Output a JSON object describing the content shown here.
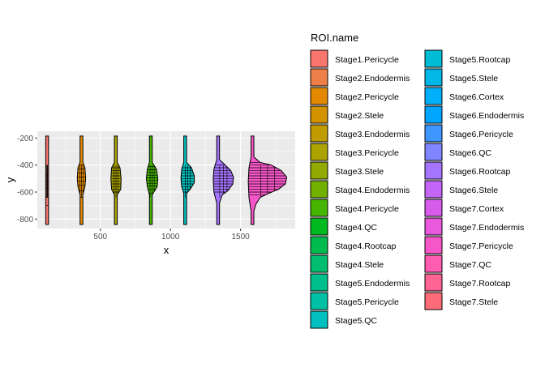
{
  "chart_data": {
    "type": "polygon-map",
    "title": "",
    "xlabel": "x",
    "ylabel": "y",
    "xlim": [
      50,
      1890
    ],
    "ylim": [
      -870,
      -150
    ],
    "x_ticks": [
      500,
      1000,
      1500
    ],
    "y_ticks": [
      -200,
      -400,
      -600,
      -800
    ],
    "grid": true,
    "legend_title": "ROI.name",
    "legend_position": "right",
    "outline_color": "#000000",
    "panel_background": "#ebebeb",
    "categories": [
      {
        "name": "Stage1.Pericycle",
        "color": "#F8766D"
      },
      {
        "name": "Stage2.Endodermis",
        "color": "#EF7F49"
      },
      {
        "name": "Stage2.Pericycle",
        "color": "#E38900"
      },
      {
        "name": "Stage2.Stele",
        "color": "#D39200"
      },
      {
        "name": "Stage3.Endodermis",
        "color": "#C09B00"
      },
      {
        "name": "Stage3.Pericycle",
        "color": "#AAA300"
      },
      {
        "name": "Stage3.Stele",
        "color": "#91AA00"
      },
      {
        "name": "Stage4.Endodermis",
        "color": "#72B000"
      },
      {
        "name": "Stage4.Pericycle",
        "color": "#45B500"
      },
      {
        "name": "Stage4.QC",
        "color": "#00B81F"
      },
      {
        "name": "Stage4.Rootcap",
        "color": "#00BB4E"
      },
      {
        "name": "Stage4.Stele",
        "color": "#00BD6F"
      },
      {
        "name": "Stage5.Endodermis",
        "color": "#00BF8C"
      },
      {
        "name": "Stage5.Pericycle",
        "color": "#00C0A6"
      },
      {
        "name": "Stage5.QC",
        "color": "#00BFBE"
      },
      {
        "name": "Stage5.Rootcap",
        "color": "#00BCD4"
      },
      {
        "name": "Stage5.Stele",
        "color": "#00B7E8"
      },
      {
        "name": "Stage6.Cortex",
        "color": "#00AFF9"
      },
      {
        "name": "Stage6.Endodermis",
        "color": "#00A5FF"
      },
      {
        "name": "Stage6.Pericycle",
        "color": "#3D97FF"
      },
      {
        "name": "Stage6.QC",
        "color": "#7F86FF"
      },
      {
        "name": "Stage6.Rootcap",
        "color": "#A675FF"
      },
      {
        "name": "Stage6.Stele",
        "color": "#C365F8"
      },
      {
        "name": "Stage7.Cortex",
        "color": "#D75CEC"
      },
      {
        "name": "Stage7.Endodermis",
        "color": "#E958DD"
      },
      {
        "name": "Stage7.Pericycle",
        "color": "#F657C8"
      },
      {
        "name": "Stage7.QC",
        "color": "#FD5CB0"
      },
      {
        "name": "Stage7.Rootcap",
        "color": "#FF6495"
      },
      {
        "name": "Stage7.Stele",
        "color": "#FF6C79"
      }
    ],
    "shapes": [
      {
        "stage": "Stage1",
        "fill": "#F8766D",
        "outline": [
          [
            110,
            -185
          ],
          [
            130,
            -185
          ],
          [
            130,
            -840
          ],
          [
            110,
            -840
          ]
        ],
        "hlines": [
          -480,
          -520,
          -570,
          -640,
          -700
        ]
      },
      {
        "stage": "Stage2",
        "fill": "#E38900",
        "outline": [
          [
            355,
            -185
          ],
          [
            375,
            -185
          ],
          [
            375,
            -380
          ],
          [
            390,
            -420
          ],
          [
            395,
            -500
          ],
          [
            390,
            -560
          ],
          [
            375,
            -620
          ],
          [
            375,
            -840
          ],
          [
            355,
            -840
          ],
          [
            355,
            -620
          ],
          [
            340,
            -560
          ],
          [
            335,
            -500
          ],
          [
            340,
            -420
          ],
          [
            355,
            -380
          ]
        ],
        "hlines": [
          -400,
          -430,
          -460,
          -490,
          -520,
          -550,
          -590,
          -640
        ]
      },
      {
        "stage": "Stage3",
        "fill": "#AAA300",
        "outline": [
          [
            600,
            -185
          ],
          [
            620,
            -185
          ],
          [
            620,
            -380
          ],
          [
            640,
            -420
          ],
          [
            648,
            -500
          ],
          [
            645,
            -580
          ],
          [
            620,
            -620
          ],
          [
            620,
            -840
          ],
          [
            600,
            -840
          ],
          [
            600,
            -620
          ],
          [
            580,
            -580
          ],
          [
            575,
            -500
          ],
          [
            580,
            -420
          ],
          [
            600,
            -380
          ]
        ],
        "hlines": [
          -420,
          -440,
          -460,
          -480,
          -500,
          -520,
          -540,
          -560,
          -580,
          -600
        ]
      },
      {
        "stage": "Stage4",
        "fill": "#45B500",
        "outline": [
          [
            850,
            -185
          ],
          [
            870,
            -185
          ],
          [
            870,
            -380
          ],
          [
            900,
            -430
          ],
          [
            910,
            -500
          ],
          [
            905,
            -560
          ],
          [
            870,
            -620
          ],
          [
            870,
            -840
          ],
          [
            850,
            -840
          ],
          [
            850,
            -620
          ],
          [
            835,
            -560
          ],
          [
            828,
            -500
          ],
          [
            835,
            -430
          ],
          [
            850,
            -380
          ]
        ],
        "hlines": [
          -410,
          -435,
          -455,
          -475,
          -495,
          -515,
          -535,
          -555,
          -580,
          -610
        ]
      },
      {
        "stage": "Stage5",
        "fill": "#00BFBE",
        "outline": [
          [
            1095,
            -185
          ],
          [
            1115,
            -185
          ],
          [
            1115,
            -380
          ],
          [
            1150,
            -420
          ],
          [
            1170,
            -480
          ],
          [
            1170,
            -530
          ],
          [
            1140,
            -580
          ],
          [
            1115,
            -610
          ],
          [
            1115,
            -840
          ],
          [
            1095,
            -840
          ],
          [
            1095,
            -610
          ],
          [
            1080,
            -560
          ],
          [
            1075,
            -500
          ],
          [
            1080,
            -430
          ],
          [
            1095,
            -380
          ]
        ],
        "hlines": [
          -420,
          -440,
          -460,
          -480,
          -500,
          -520,
          -540,
          -560,
          -580,
          -600
        ]
      },
      {
        "stage": "Stage6",
        "fill": "#A675FF",
        "outline": [
          [
            1330,
            -185
          ],
          [
            1350,
            -185
          ],
          [
            1350,
            -360
          ],
          [
            1390,
            -400
          ],
          [
            1430,
            -440
          ],
          [
            1450,
            -490
          ],
          [
            1445,
            -540
          ],
          [
            1410,
            -590
          ],
          [
            1370,
            -620
          ],
          [
            1350,
            -680
          ],
          [
            1350,
            -840
          ],
          [
            1330,
            -840
          ],
          [
            1330,
            -680
          ],
          [
            1310,
            -600
          ],
          [
            1305,
            -500
          ],
          [
            1310,
            -430
          ],
          [
            1330,
            -360
          ]
        ],
        "hlines": [
          -400,
          -420,
          -440,
          -460,
          -480,
          -500,
          -520,
          -540,
          -560,
          -580,
          -600
        ]
      },
      {
        "stage": "Stage7",
        "fill": "#F657C8",
        "outline": [
          [
            1575,
            -185
          ],
          [
            1595,
            -185
          ],
          [
            1595,
            -340
          ],
          [
            1640,
            -380
          ],
          [
            1720,
            -400
          ],
          [
            1790,
            -440
          ],
          [
            1830,
            -490
          ],
          [
            1820,
            -540
          ],
          [
            1770,
            -580
          ],
          [
            1700,
            -610
          ],
          [
            1640,
            -640
          ],
          [
            1610,
            -690
          ],
          [
            1595,
            -740
          ],
          [
            1595,
            -840
          ],
          [
            1575,
            -840
          ],
          [
            1575,
            -740
          ],
          [
            1560,
            -640
          ],
          [
            1555,
            -520
          ],
          [
            1560,
            -420
          ],
          [
            1575,
            -340
          ]
        ],
        "hlines": [
          -380,
          -400,
          -420,
          -440,
          -460,
          -480,
          -500,
          -520,
          -540,
          -560,
          -580,
          -600,
          -620
        ]
      }
    ]
  }
}
